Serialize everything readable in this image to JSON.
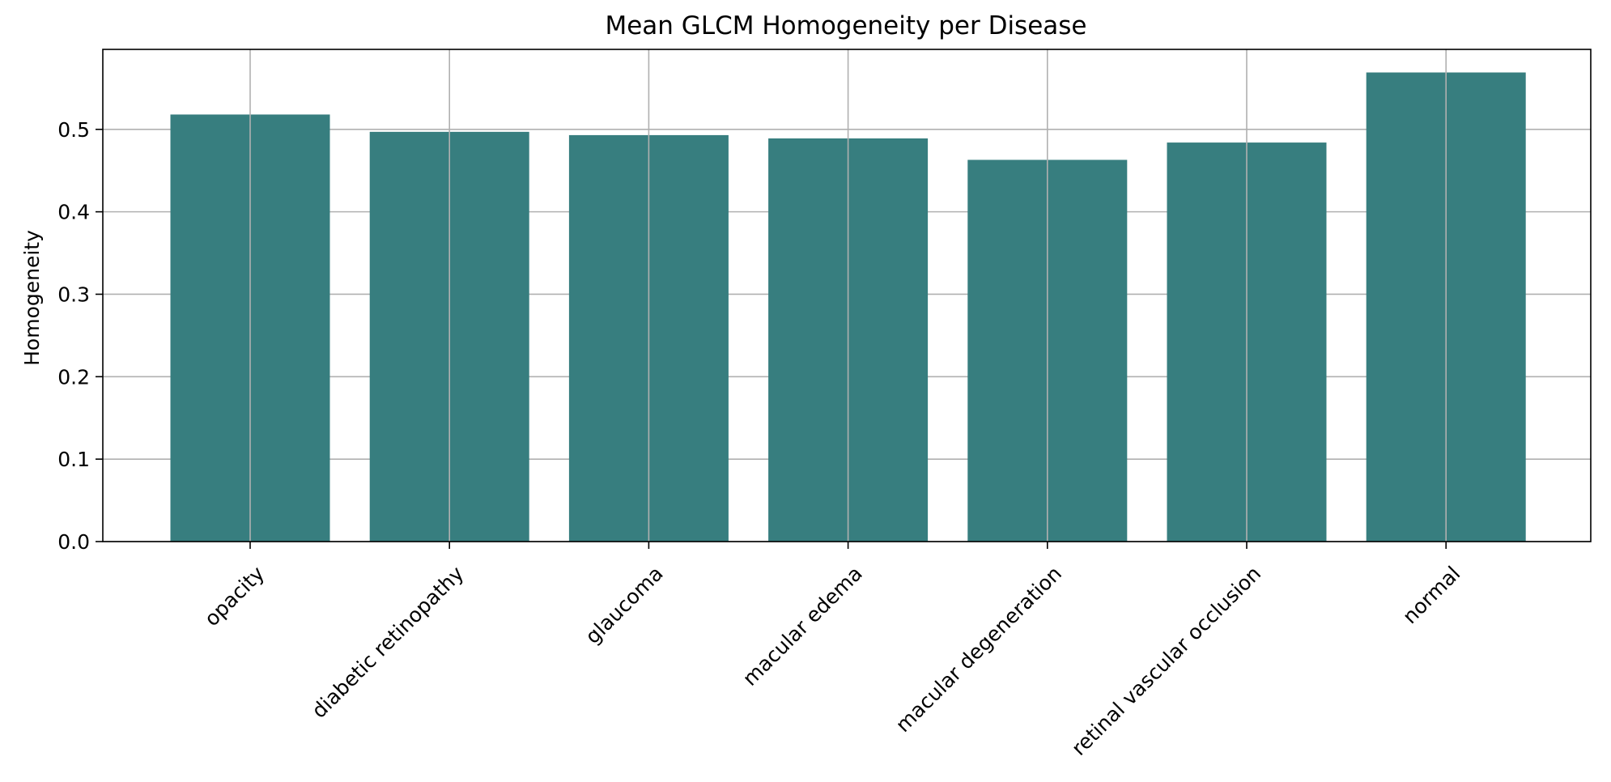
{
  "chart_data": {
    "type": "bar",
    "title": "Mean GLCM Homogeneity per Disease",
    "xlabel": "",
    "ylabel": "Homogeneity",
    "categories": [
      "opacity",
      "diabetic retinopathy",
      "glaucoma",
      "macular edema",
      "macular degeneration",
      "retinal vascular occlusion",
      "normal"
    ],
    "values": [
      0.518,
      0.497,
      0.493,
      0.489,
      0.463,
      0.484,
      0.569
    ],
    "ylim": [
      0,
      0.597
    ],
    "yticks": [
      0.0,
      0.1,
      0.2,
      0.3,
      0.4,
      0.5
    ],
    "ytick_labels": [
      "0.0",
      "0.1",
      "0.2",
      "0.3",
      "0.4",
      "0.5"
    ],
    "grid": true,
    "bar_color": "#377e7f"
  }
}
